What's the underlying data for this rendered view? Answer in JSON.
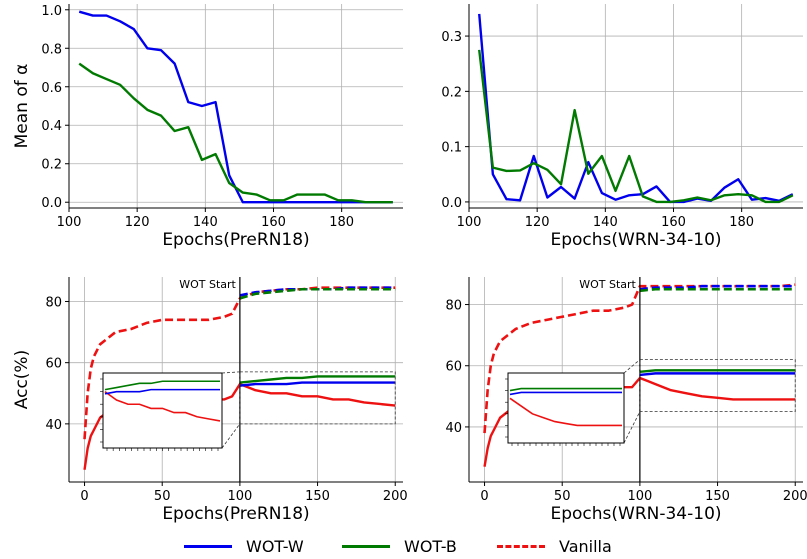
{
  "colors": {
    "wotw": "#0000ee",
    "wotb": "#007a00",
    "vanilla": "#ee1111"
  },
  "legend": [
    {
      "key": "wotw",
      "label": "WOT-W",
      "style": "solid"
    },
    {
      "key": "wotb",
      "label": "WOT-B",
      "style": "solid"
    },
    {
      "key": "vanilla",
      "label": "Vanilla",
      "style": "dashed"
    }
  ],
  "chart_data": [
    {
      "type": "line",
      "xlabel": "Epochs(PreRN18)",
      "ylabel": "Mean of α",
      "xlim": [
        100,
        198
      ],
      "ylim": [
        -0.03,
        1.03
      ],
      "xticks": [
        100,
        120,
        140,
        160,
        180
      ],
      "yticks": [
        0.0,
        0.2,
        0.4,
        0.6,
        0.8,
        1.0
      ],
      "ytick_labels": [
        "0.0",
        "0.2",
        "0.4",
        "0.6",
        "0.8",
        "1.0"
      ],
      "grid": true,
      "series": [
        {
          "name": "WOT-W",
          "color_key": "wotw",
          "x": [
            103,
            107,
            111,
            115,
            119,
            123,
            127,
            131,
            135,
            139,
            143,
            147,
            151,
            155,
            159,
            163,
            167,
            171,
            175,
            179,
            183,
            187,
            191,
            195
          ],
          "y": [
            0.99,
            0.97,
            0.97,
            0.94,
            0.9,
            0.8,
            0.79,
            0.72,
            0.52,
            0.5,
            0.52,
            0.14,
            0.0,
            0.0,
            0.0,
            0.0,
            0.0,
            0.0,
            0.0,
            0.0,
            0.0,
            0.0,
            0.0,
            0.0
          ]
        },
        {
          "name": "WOT-B",
          "color_key": "wotb",
          "x": [
            103,
            107,
            111,
            115,
            119,
            123,
            127,
            131,
            135,
            139,
            143,
            147,
            151,
            155,
            159,
            163,
            167,
            171,
            175,
            179,
            183,
            187,
            191,
            195
          ],
          "y": [
            0.72,
            0.67,
            0.64,
            0.61,
            0.54,
            0.48,
            0.45,
            0.37,
            0.39,
            0.22,
            0.25,
            0.1,
            0.05,
            0.04,
            0.01,
            0.01,
            0.04,
            0.04,
            0.04,
            0.01,
            0.01,
            0.0,
            0.0,
            0.0
          ]
        }
      ]
    },
    {
      "type": "line",
      "xlabel": "Epochs(WRN-34-10)",
      "ylabel": "",
      "xlim": [
        100,
        198
      ],
      "ylim": [
        -0.011,
        0.358
      ],
      "xticks": [
        100,
        120,
        140,
        160,
        180
      ],
      "yticks": [
        0.0,
        0.1,
        0.2,
        0.3
      ],
      "ytick_labels": [
        "0.0",
        "0.1",
        "0.2",
        "0.3"
      ],
      "grid": true,
      "series": [
        {
          "name": "WOT-W",
          "color_key": "wotw",
          "x": [
            103,
            107,
            111,
            115,
            119,
            123,
            127,
            131,
            135,
            139,
            143,
            147,
            151,
            155,
            159,
            163,
            167,
            171,
            175,
            179,
            183,
            187,
            191,
            195
          ],
          "y": [
            0.34,
            0.05,
            0.005,
            0.003,
            0.083,
            0.008,
            0.027,
            0.006,
            0.072,
            0.016,
            0.004,
            0.012,
            0.014,
            0.028,
            0.0,
            0.0,
            0.006,
            0.002,
            0.026,
            0.041,
            0.004,
            0.007,
            0.002,
            0.014
          ]
        },
        {
          "name": "WOT-B",
          "color_key": "wotb",
          "x": [
            103,
            107,
            111,
            115,
            119,
            123,
            127,
            131,
            135,
            139,
            143,
            147,
            151,
            155,
            159,
            163,
            167,
            171,
            175,
            179,
            183,
            187,
            191,
            195
          ],
          "y": [
            0.275,
            0.062,
            0.056,
            0.057,
            0.07,
            0.058,
            0.032,
            0.166,
            0.051,
            0.083,
            0.02,
            0.083,
            0.01,
            0.0,
            0.0,
            0.003,
            0.008,
            0.003,
            0.012,
            0.014,
            0.012,
            0.0,
            0.0,
            0.012
          ]
        }
      ]
    },
    {
      "type": "line",
      "xlabel": "Epochs(PreRN18)",
      "ylabel": "Acc(%)",
      "annotation": "WOT Start",
      "vline_x": 100,
      "xlim": [
        -10,
        205
      ],
      "ylim": [
        21,
        88
      ],
      "xticks": [
        0,
        50,
        100,
        150,
        200
      ],
      "yticks": [
        40,
        60,
        80
      ],
      "ytick_labels": [
        "40",
        "60",
        "80"
      ],
      "grid": true,
      "series": [
        {
          "name": "Vanilla",
          "color_key": "vanilla",
          "dashed": true,
          "x": [
            0,
            2,
            4,
            6,
            8,
            10,
            15,
            20,
            30,
            40,
            50,
            60,
            70,
            80,
            90,
            95,
            100,
            105,
            110,
            120,
            130,
            140,
            150,
            160,
            170,
            180,
            190,
            200
          ],
          "y": [
            35,
            50,
            58,
            62,
            64,
            66,
            68,
            70,
            71,
            73,
            74,
            74,
            74,
            74,
            75,
            76,
            81,
            82,
            83,
            83.5,
            84,
            84,
            84.5,
            84.5,
            84.5,
            84.5,
            84.5,
            84.5
          ]
        },
        {
          "name": "Vanilla",
          "color_key": "vanilla",
          "dashed": false,
          "x": [
            0,
            2,
            4,
            6,
            8,
            10,
            15,
            20,
            30,
            40,
            50,
            60,
            70,
            80,
            90,
            95,
            100,
            105,
            110,
            120,
            130,
            140,
            150,
            160,
            170,
            180,
            190,
            200
          ],
          "y": [
            25,
            32,
            36,
            38,
            40,
            42,
            44,
            46,
            46,
            47,
            47,
            47,
            48,
            48,
            48,
            49,
            53,
            52,
            51,
            50,
            50,
            49,
            49,
            48,
            48,
            47,
            46.5,
            46
          ]
        },
        {
          "name": "WOT-W",
          "color_key": "wotw",
          "dashed": true,
          "x": [
            100,
            110,
            120,
            130,
            140,
            150,
            160,
            170,
            180,
            190,
            200
          ],
          "y": [
            82,
            83,
            83.5,
            84,
            84,
            84,
            84,
            84.5,
            84.5,
            84.5,
            84.5
          ]
        },
        {
          "name": "WOT-B",
          "color_key": "wotb",
          "dashed": true,
          "x": [
            100,
            110,
            120,
            130,
            140,
            150,
            160,
            170,
            180,
            190,
            200
          ],
          "y": [
            81,
            82.5,
            83,
            83.5,
            84,
            84,
            84,
            84,
            84,
            84,
            84
          ]
        },
        {
          "name": "WOT-W",
          "color_key": "wotw",
          "dashed": false,
          "x": [
            100,
            110,
            120,
            130,
            140,
            150,
            160,
            170,
            180,
            190,
            200
          ],
          "y": [
            52.5,
            53,
            53,
            53,
            53.5,
            53.5,
            53.5,
            53.5,
            53.5,
            53.5,
            53.5
          ]
        },
        {
          "name": "WOT-B",
          "color_key": "wotb",
          "dashed": false,
          "x": [
            100,
            110,
            120,
            130,
            140,
            150,
            160,
            170,
            180,
            190,
            200
          ],
          "y": [
            53.5,
            54,
            54.5,
            55,
            55,
            55.5,
            55.5,
            55.5,
            55.5,
            55.5,
            55.5
          ]
        }
      ]
    },
    {
      "type": "line",
      "xlabel": "Epochs(WRN-34-10)",
      "ylabel": "",
      "annotation": "WOT Start",
      "vline_x": 100,
      "xlim": [
        -10,
        205
      ],
      "ylim": [
        22,
        89
      ],
      "xticks": [
        0,
        50,
        100,
        150,
        200
      ],
      "yticks": [
        40,
        60,
        80
      ],
      "ytick_labels": [
        "40",
        "60",
        "80"
      ],
      "grid": true,
      "series": [
        {
          "name": "Vanilla",
          "color_key": "vanilla",
          "dashed": true,
          "x": [
            0,
            2,
            4,
            6,
            8,
            10,
            15,
            20,
            30,
            40,
            50,
            60,
            70,
            80,
            90,
            95,
            100,
            105,
            110,
            120,
            130,
            140,
            150,
            160,
            170,
            180,
            190,
            200
          ],
          "y": [
            38,
            52,
            60,
            64,
            66,
            68,
            70,
            72,
            74,
            75,
            76,
            77,
            78,
            78,
            79,
            80,
            86,
            86,
            86,
            86,
            86,
            86,
            86,
            86,
            86,
            86,
            86,
            86.5
          ]
        },
        {
          "name": "Vanilla",
          "color_key": "vanilla",
          "dashed": false,
          "x": [
            0,
            2,
            4,
            6,
            8,
            10,
            15,
            20,
            30,
            40,
            50,
            60,
            70,
            80,
            90,
            95,
            100,
            105,
            110,
            120,
            130,
            140,
            150,
            160,
            170,
            180,
            190,
            200
          ],
          "y": [
            27,
            33,
            37,
            39,
            41,
            43,
            45,
            47,
            49,
            50,
            51,
            51,
            52,
            52,
            53,
            53,
            56,
            55,
            54,
            52,
            51,
            50,
            49.5,
            49,
            49,
            49,
            49,
            49
          ]
        },
        {
          "name": "WOT-W",
          "color_key": "wotw",
          "dashed": true,
          "x": [
            100,
            110,
            120,
            130,
            140,
            150,
            160,
            170,
            180,
            190,
            200
          ],
          "y": [
            85,
            85.5,
            85.5,
            85.5,
            86,
            86,
            86,
            86,
            86,
            86,
            86
          ]
        },
        {
          "name": "WOT-B",
          "color_key": "wotb",
          "dashed": true,
          "x": [
            100,
            110,
            120,
            130,
            140,
            150,
            160,
            170,
            180,
            190,
            200
          ],
          "y": [
            84.5,
            85,
            85,
            85,
            85,
            85,
            85,
            85,
            85,
            85,
            85
          ]
        },
        {
          "name": "WOT-W",
          "color_key": "wotw",
          "dashed": false,
          "x": [
            100,
            110,
            120,
            130,
            140,
            150,
            160,
            170,
            180,
            190,
            200
          ],
          "y": [
            57,
            57.5,
            57.5,
            57.5,
            57.5,
            57.5,
            57.5,
            57.5,
            57.5,
            57.5,
            57.5
          ]
        },
        {
          "name": "WOT-B",
          "color_key": "wotb",
          "dashed": false,
          "x": [
            100,
            110,
            120,
            130,
            140,
            150,
            160,
            170,
            180,
            190,
            200
          ],
          "y": [
            58,
            58.5,
            58.5,
            58.5,
            58.5,
            58.5,
            58.5,
            58.5,
            58.5,
            58.5,
            58.5
          ]
        }
      ]
    }
  ]
}
